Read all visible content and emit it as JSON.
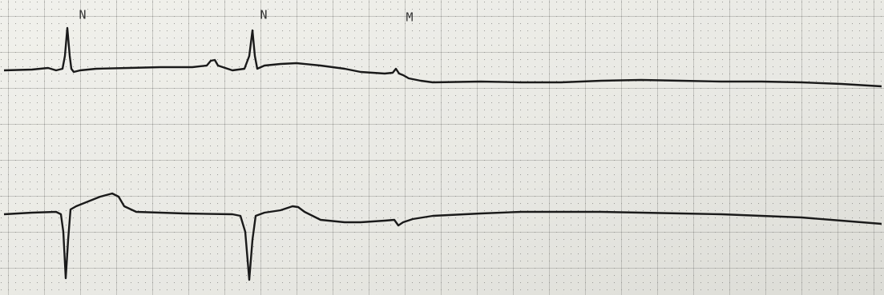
{
  "annotations": [
    {
      "label": "N"
    },
    {
      "label": "N"
    },
    {
      "label": "M"
    }
  ]
}
